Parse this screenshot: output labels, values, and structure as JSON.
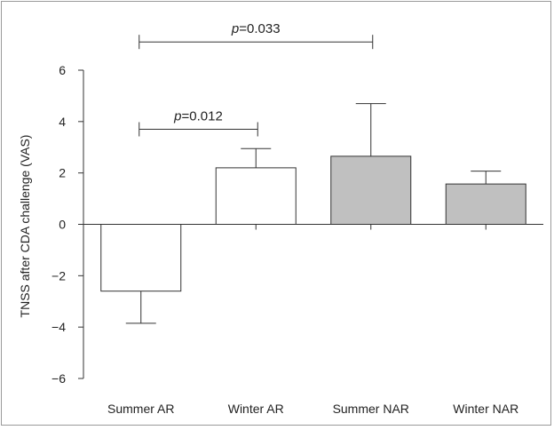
{
  "chart_data": {
    "type": "bar",
    "categories": [
      "Summer AR",
      "Winter AR",
      "Summer NAR",
      "Winter NAR"
    ],
    "values": [
      -2.6,
      2.2,
      2.65,
      1.57
    ],
    "errors": [
      1.25,
      0.75,
      2.05,
      0.5
    ],
    "colors": [
      "#ffffff",
      "#ffffff",
      "#c0c0c0",
      "#c0c0c0"
    ],
    "ylabel": "TNSS after CDA challenge (VAS)",
    "xlabel": "",
    "ylim": [
      -6,
      6
    ],
    "yticks": [
      -6,
      -4,
      -2,
      0,
      2,
      4,
      6
    ],
    "ytick_labels": [
      "−6",
      "−4",
      "−2",
      "0",
      "2",
      "4",
      "6"
    ],
    "grid": false,
    "annotations": [
      {
        "p_italic": "p",
        "value": "=0.033",
        "from": "Summer AR",
        "to": "Summer NAR",
        "y": 7.1
      },
      {
        "p_italic": "p",
        "value": "=0.012",
        "from": "Summer AR",
        "to": "Winter AR",
        "y": 3.7
      }
    ]
  }
}
